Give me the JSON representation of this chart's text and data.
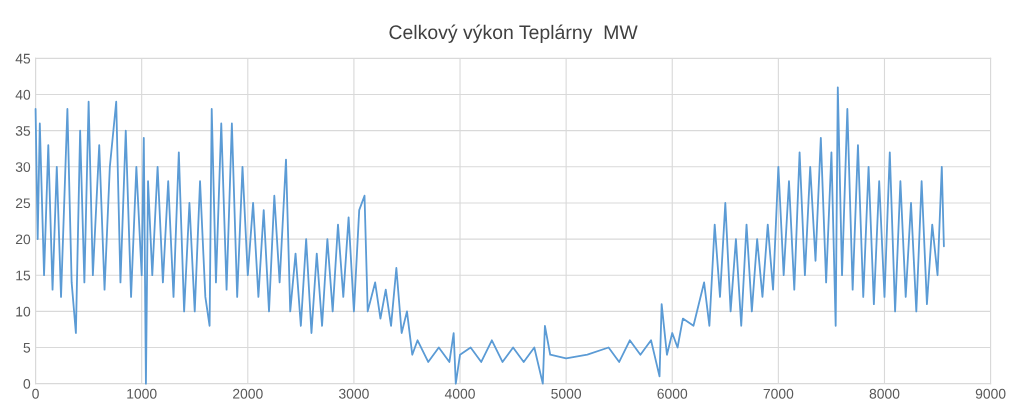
{
  "chart_data": {
    "type": "line",
    "title": "Celkový výkon Teplárny  MW",
    "xlim": [
      0,
      9000
    ],
    "xticks": [
      0,
      1000,
      2000,
      3000,
      4000,
      5000,
      6000,
      7000,
      8000,
      9000
    ],
    "ylim": [
      0,
      45
    ],
    "yticks": [
      0,
      5,
      10,
      15,
      20,
      25,
      30,
      35,
      40,
      45
    ],
    "grid": true,
    "series": [
      {
        "color": "#5b9bd5",
        "x": [
          0,
          20,
          40,
          80,
          120,
          160,
          200,
          240,
          300,
          340,
          380,
          420,
          460,
          500,
          540,
          600,
          650,
          700,
          760,
          800,
          850,
          900,
          950,
          1000,
          1020,
          1040,
          1060,
          1100,
          1150,
          1200,
          1250,
          1300,
          1350,
          1400,
          1450,
          1500,
          1550,
          1600,
          1640,
          1660,
          1700,
          1750,
          1800,
          1850,
          1900,
          1950,
          2000,
          2050,
          2100,
          2150,
          2200,
          2250,
          2300,
          2360,
          2400,
          2450,
          2500,
          2550,
          2600,
          2650,
          2700,
          2750,
          2800,
          2850,
          2900,
          2950,
          3000,
          3050,
          3100,
          3130,
          3200,
          3250,
          3300,
          3350,
          3400,
          3450,
          3500,
          3550,
          3600,
          3700,
          3800,
          3900,
          3940,
          3960,
          4000,
          4100,
          4200,
          4300,
          4400,
          4500,
          4600,
          4700,
          4780,
          4800,
          4850,
          5000,
          5200,
          5400,
          5500,
          5600,
          5700,
          5800,
          5880,
          5900,
          5950,
          6000,
          6050,
          6100,
          6200,
          6300,
          6350,
          6400,
          6450,
          6500,
          6550,
          6600,
          6650,
          6700,
          6750,
          6800,
          6850,
          6900,
          6950,
          7000,
          7050,
          7100,
          7150,
          7200,
          7250,
          7300,
          7350,
          7400,
          7450,
          7500,
          7540,
          7560,
          7600,
          7650,
          7700,
          7750,
          7800,
          7850,
          7900,
          7950,
          8000,
          8050,
          8100,
          8150,
          8200,
          8250,
          8300,
          8350,
          8400,
          8450,
          8500,
          8540,
          8560
        ],
        "values": [
          38,
          20,
          36,
          15,
          33,
          13,
          30,
          12,
          38,
          14,
          7,
          35,
          14,
          39,
          15,
          33,
          13,
          30,
          39,
          14,
          35,
          12,
          30,
          15,
          34,
          0,
          28,
          15,
          30,
          14,
          28,
          12,
          32,
          10,
          25,
          10,
          28,
          12,
          8,
          38,
          14,
          36,
          13,
          36,
          12,
          30,
          15,
          25,
          12,
          24,
          10,
          26,
          14,
          31,
          10,
          18,
          8,
          20,
          7,
          18,
          8,
          20,
          10,
          22,
          12,
          23,
          10,
          24,
          26,
          10,
          14,
          9,
          13,
          8,
          16,
          7,
          10,
          4,
          6,
          3,
          5,
          3,
          7,
          0,
          4,
          5,
          3,
          6,
          3,
          5,
          3,
          5,
          0,
          8,
          4,
          3.5,
          4,
          5,
          3,
          6,
          4,
          6,
          1,
          11,
          4,
          7,
          5,
          9,
          8,
          14,
          8,
          22,
          12,
          25,
          10,
          20,
          8,
          22,
          10,
          20,
          12,
          22,
          13,
          30,
          15,
          28,
          13,
          32,
          15,
          30,
          17,
          34,
          14,
          32,
          8,
          41,
          15,
          38,
          13,
          33,
          12,
          30,
          11,
          28,
          12,
          32,
          10,
          28,
          12,
          25,
          10,
          28,
          11,
          22,
          15,
          30,
          19
        ]
      }
    ]
  }
}
